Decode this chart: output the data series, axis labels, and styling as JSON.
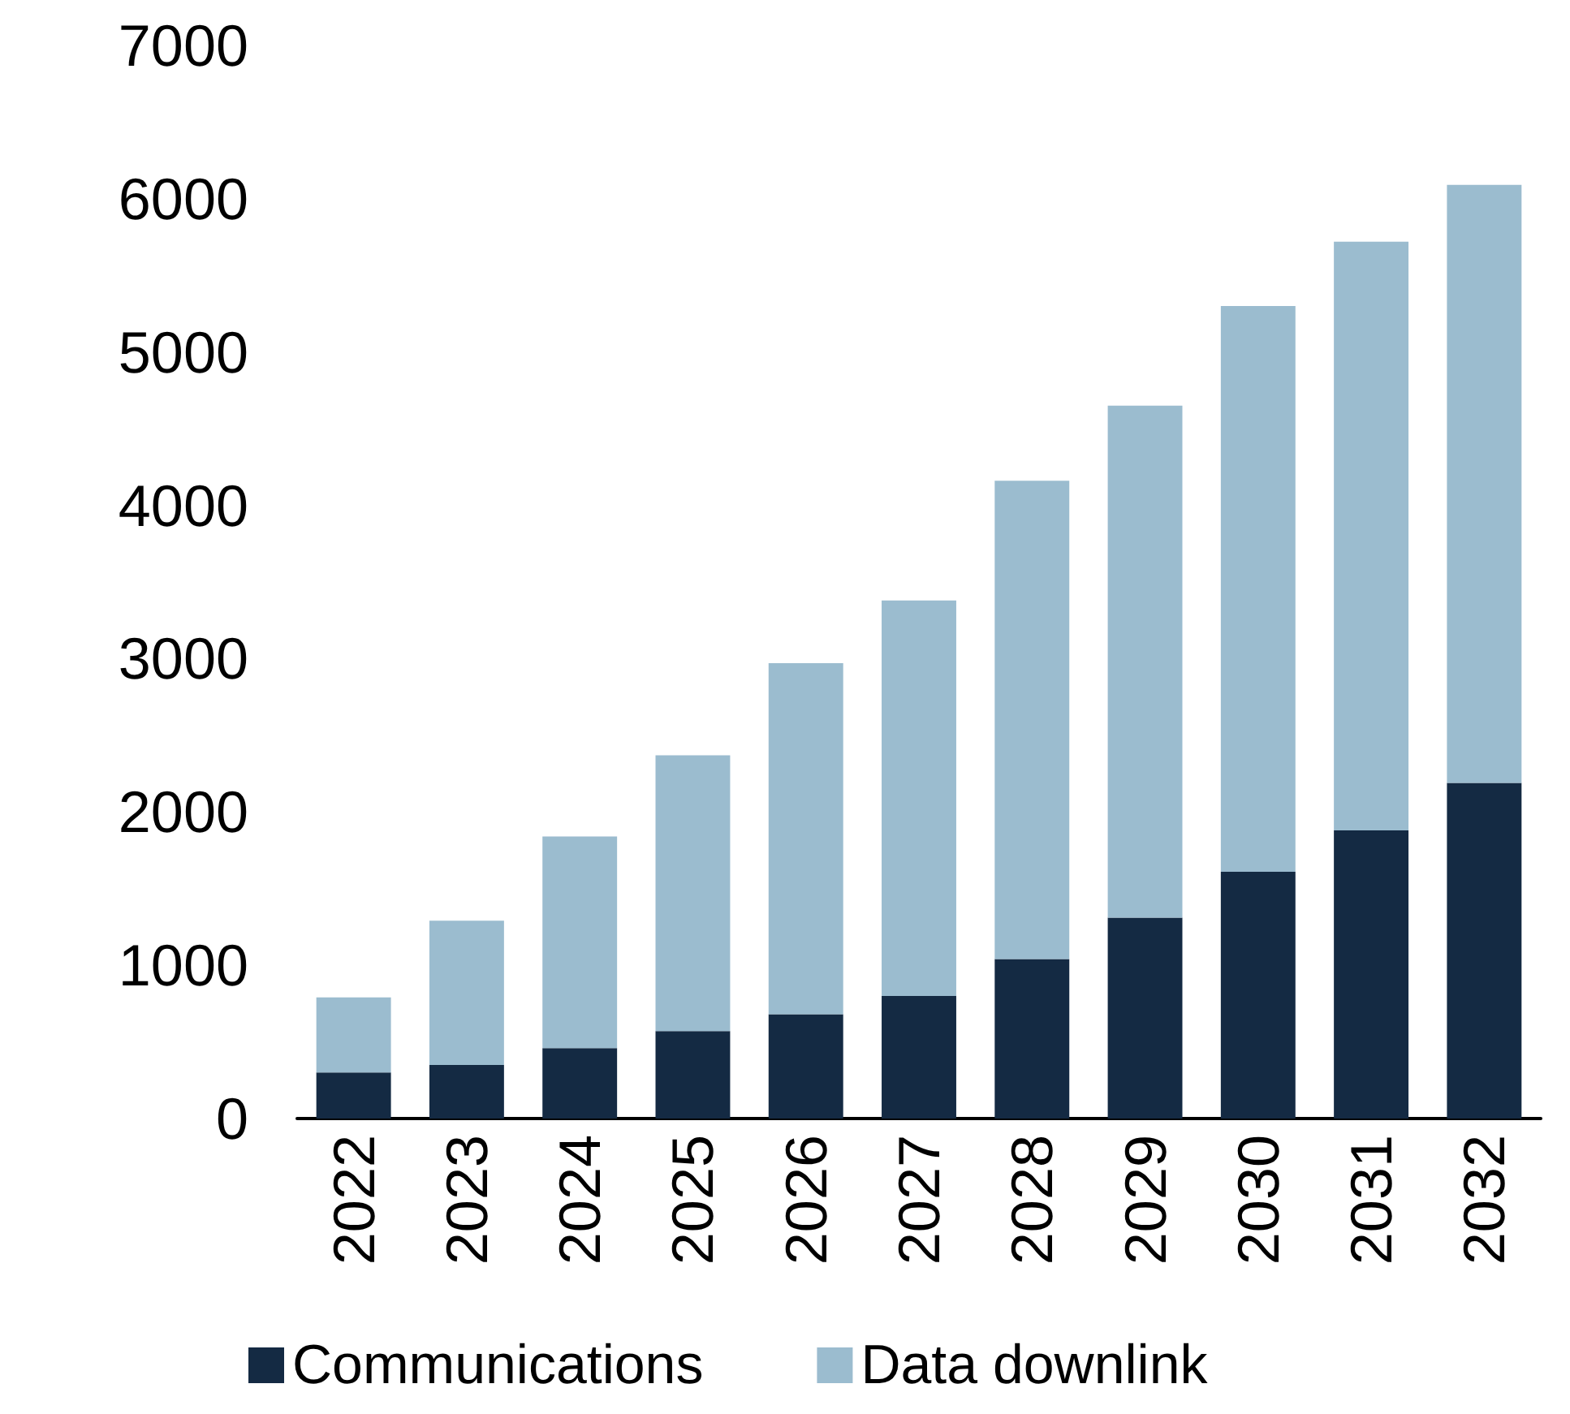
{
  "chart_data": {
    "type": "bar",
    "stacked": true,
    "categories": [
      "2022",
      "2023",
      "2024",
      "2025",
      "2026",
      "2027",
      "2028",
      "2029",
      "2030",
      "2031",
      "2032"
    ],
    "series": [
      {
        "name": "Communications",
        "color": "#142a43",
        "values": [
          300,
          350,
          460,
          570,
          680,
          800,
          1040,
          1310,
          1610,
          1880,
          2190
        ]
      },
      {
        "name": "Data downlink",
        "color": "#9bbccf",
        "values": [
          490,
          940,
          1380,
          1800,
          2290,
          2580,
          3120,
          3340,
          3690,
          3840,
          3900
        ]
      }
    ],
    "ylim": [
      0,
      7000
    ],
    "yticks": [
      0,
      1000,
      2000,
      3000,
      4000,
      5000,
      6000,
      7000
    ],
    "grid": false,
    "legend": "bottom"
  }
}
